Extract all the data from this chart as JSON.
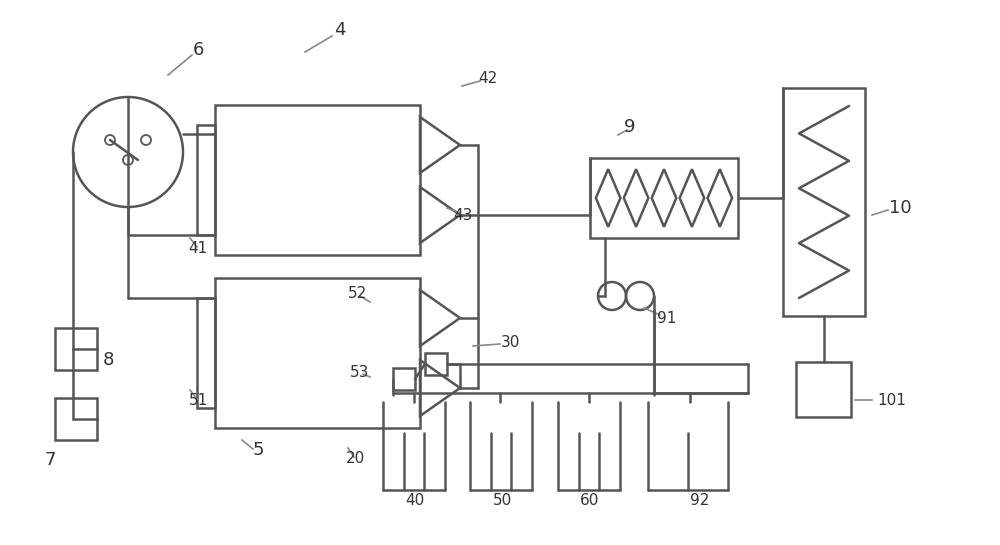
{
  "lc": "#555555",
  "lw": 1.8,
  "fig_w": 10.0,
  "fig_h": 5.45
}
